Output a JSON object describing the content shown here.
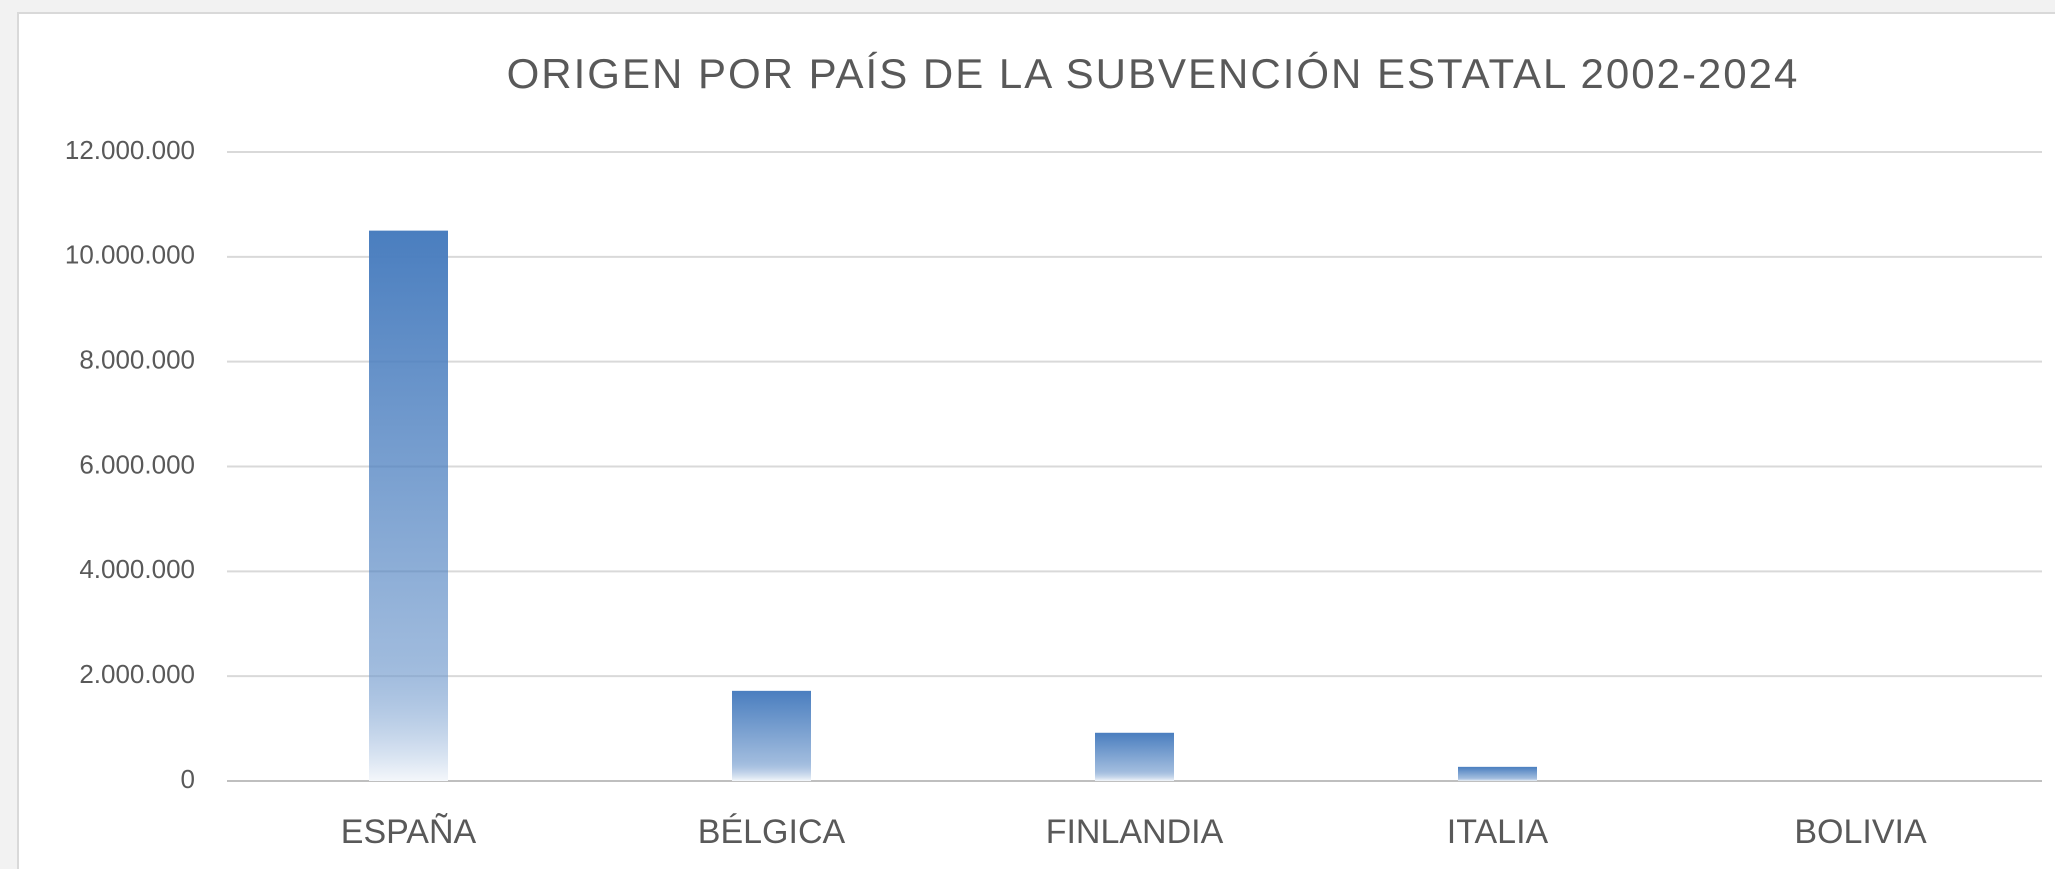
{
  "chart_data": {
    "type": "bar",
    "title": "ORIGEN POR PAÍS DE LA SUBVENCIÓN ESTATAL 2002-2024",
    "categories": [
      "ESPAÑA",
      "BÉLGICA",
      "FINLANDIA",
      "ITALIA",
      "BOLIVIA"
    ],
    "values": [
      10500000,
      1720000,
      920000,
      270000,
      0
    ],
    "color": "#4a7ebf",
    "ylim": [
      0,
      12000000
    ],
    "yticks": [
      0,
      {
        "value": 2000000,
        "label": "2.000.000"
      },
      {
        "value": 4000000,
        "label": "4.000.000"
      },
      {
        "value": 6000000,
        "label": "6.000.000"
      },
      {
        "value": 8000000,
        "label": "8.000.000"
      },
      {
        "value": 10000000,
        "label": "10.000.000"
      },
      {
        "value": 12000000,
        "label": "12.000.000"
      }
    ],
    "grid": true
  }
}
